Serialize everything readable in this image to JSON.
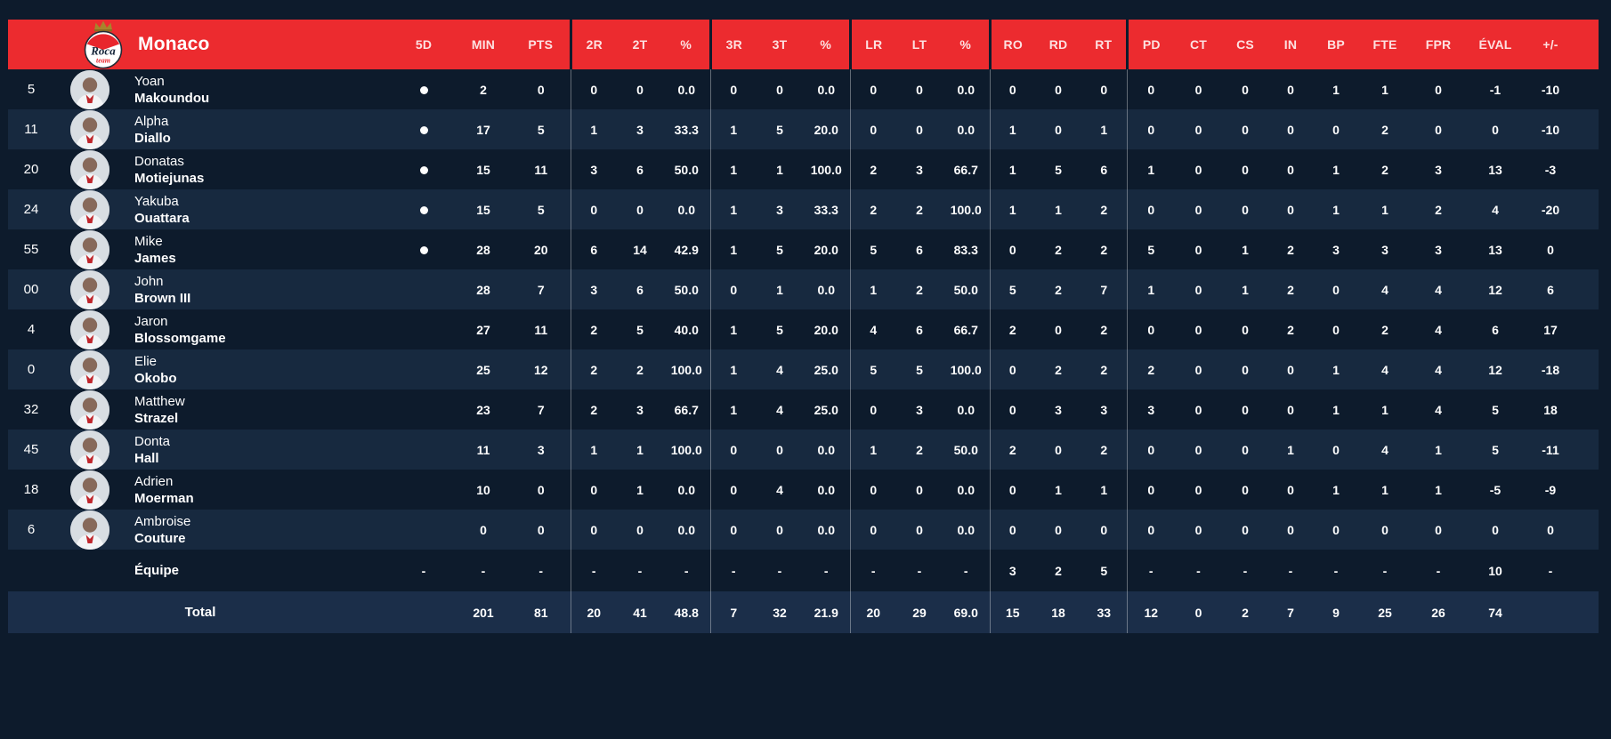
{
  "team": {
    "name": "Monaco",
    "logo": "roca-team-crest",
    "logo_script": "Roca",
    "logo_sub": "team"
  },
  "columns": [
    "5D",
    "MIN",
    "PTS",
    "2R",
    "2T",
    "%",
    "3R",
    "3T",
    "%",
    "LR",
    "LT",
    "%",
    "RO",
    "RD",
    "RT",
    "PD",
    "CT",
    "CS",
    "IN",
    "BP",
    "FTE",
    "FPR",
    "ÉVAL",
    "+/-"
  ],
  "starter_dot": "●",
  "players": [
    {
      "number": "5",
      "first": "Yoan",
      "last": "Makoundou",
      "starter": true,
      "stats": [
        "2",
        "0",
        "0",
        "0",
        "0.0",
        "0",
        "0",
        "0.0",
        "0",
        "0",
        "0.0",
        "0",
        "0",
        "0",
        "0",
        "0",
        "0",
        "0",
        "1",
        "1",
        "0",
        "-1",
        "-10"
      ]
    },
    {
      "number": "11",
      "first": "Alpha",
      "last": "Diallo",
      "starter": true,
      "stats": [
        "17",
        "5",
        "1",
        "3",
        "33.3",
        "1",
        "5",
        "20.0",
        "0",
        "0",
        "0.0",
        "1",
        "0",
        "1",
        "0",
        "0",
        "0",
        "0",
        "0",
        "2",
        "0",
        "0",
        "-10"
      ]
    },
    {
      "number": "20",
      "first": "Donatas",
      "last": "Motiejunas",
      "starter": true,
      "stats": [
        "15",
        "11",
        "3",
        "6",
        "50.0",
        "1",
        "1",
        "100.0",
        "2",
        "3",
        "66.7",
        "1",
        "5",
        "6",
        "1",
        "0",
        "0",
        "0",
        "1",
        "2",
        "3",
        "13",
        "-3"
      ]
    },
    {
      "number": "24",
      "first": "Yakuba",
      "last": "Ouattara",
      "starter": true,
      "stats": [
        "15",
        "5",
        "0",
        "0",
        "0.0",
        "1",
        "3",
        "33.3",
        "2",
        "2",
        "100.0",
        "1",
        "1",
        "2",
        "0",
        "0",
        "0",
        "0",
        "1",
        "1",
        "2",
        "4",
        "-20"
      ]
    },
    {
      "number": "55",
      "first": "Mike",
      "last": "James",
      "starter": true,
      "stats": [
        "28",
        "20",
        "6",
        "14",
        "42.9",
        "1",
        "5",
        "20.0",
        "5",
        "6",
        "83.3",
        "0",
        "2",
        "2",
        "5",
        "0",
        "1",
        "2",
        "3",
        "3",
        "3",
        "13",
        "0"
      ]
    },
    {
      "number": "00",
      "first": "John",
      "last": "Brown III",
      "starter": false,
      "stats": [
        "28",
        "7",
        "3",
        "6",
        "50.0",
        "0",
        "1",
        "0.0",
        "1",
        "2",
        "50.0",
        "5",
        "2",
        "7",
        "1",
        "0",
        "1",
        "2",
        "0",
        "4",
        "4",
        "12",
        "6"
      ]
    },
    {
      "number": "4",
      "first": "Jaron",
      "last": "Blossomgame",
      "starter": false,
      "stats": [
        "27",
        "11",
        "2",
        "5",
        "40.0",
        "1",
        "5",
        "20.0",
        "4",
        "6",
        "66.7",
        "2",
        "0",
        "2",
        "0",
        "0",
        "0",
        "2",
        "0",
        "2",
        "4",
        "6",
        "17"
      ]
    },
    {
      "number": "0",
      "first": "Elie",
      "last": "Okobo",
      "starter": false,
      "stats": [
        "25",
        "12",
        "2",
        "2",
        "100.0",
        "1",
        "4",
        "25.0",
        "5",
        "5",
        "100.0",
        "0",
        "2",
        "2",
        "2",
        "0",
        "0",
        "0",
        "1",
        "4",
        "4",
        "12",
        "-18"
      ]
    },
    {
      "number": "32",
      "first": "Matthew",
      "last": "Strazel",
      "starter": false,
      "stats": [
        "23",
        "7",
        "2",
        "3",
        "66.7",
        "1",
        "4",
        "25.0",
        "0",
        "3",
        "0.0",
        "0",
        "3",
        "3",
        "3",
        "0",
        "0",
        "0",
        "1",
        "1",
        "4",
        "5",
        "18"
      ]
    },
    {
      "number": "45",
      "first": "Donta",
      "last": "Hall",
      "starter": false,
      "stats": [
        "11",
        "3",
        "1",
        "1",
        "100.0",
        "0",
        "0",
        "0.0",
        "1",
        "2",
        "50.0",
        "2",
        "0",
        "2",
        "0",
        "0",
        "0",
        "1",
        "0",
        "4",
        "1",
        "5",
        "-11"
      ]
    },
    {
      "number": "18",
      "first": "Adrien",
      "last": "Moerman",
      "starter": false,
      "stats": [
        "10",
        "0",
        "0",
        "1",
        "0.0",
        "0",
        "4",
        "0.0",
        "0",
        "0",
        "0.0",
        "0",
        "1",
        "1",
        "0",
        "0",
        "0",
        "0",
        "1",
        "1",
        "1",
        "-5",
        "-9"
      ]
    },
    {
      "number": "6",
      "first": "Ambroise",
      "last": "Couture",
      "starter": false,
      "stats": [
        "0",
        "0",
        "0",
        "0",
        "0.0",
        "0",
        "0",
        "0.0",
        "0",
        "0",
        "0.0",
        "0",
        "0",
        "0",
        "0",
        "0",
        "0",
        "0",
        "0",
        "0",
        "0",
        "0",
        "0"
      ]
    }
  ],
  "team_row": {
    "label": "Équipe",
    "values": [
      "-",
      "-",
      "-",
      "-",
      "-",
      "-",
      "-",
      "-",
      "-",
      "-",
      "-",
      "-",
      "3",
      "2",
      "5",
      "-",
      "-",
      "-",
      "-",
      "-",
      "-",
      "-",
      "10",
      "-"
    ]
  },
  "total_row": {
    "label": "Total",
    "values": [
      "",
      "201",
      "81",
      "20",
      "41",
      "48.8",
      "7",
      "32",
      "21.9",
      "20",
      "29",
      "69.0",
      "15",
      "18",
      "33",
      "12",
      "0",
      "2",
      "7",
      "9",
      "25",
      "26",
      "74",
      ""
    ]
  },
  "colors": {
    "header_red": "#ec2b2f",
    "row_dark": "#0d1b2c",
    "row_light": "#17293f",
    "total_row_bg": "#1b2e49",
    "crown_gold": "#a8842c"
  }
}
